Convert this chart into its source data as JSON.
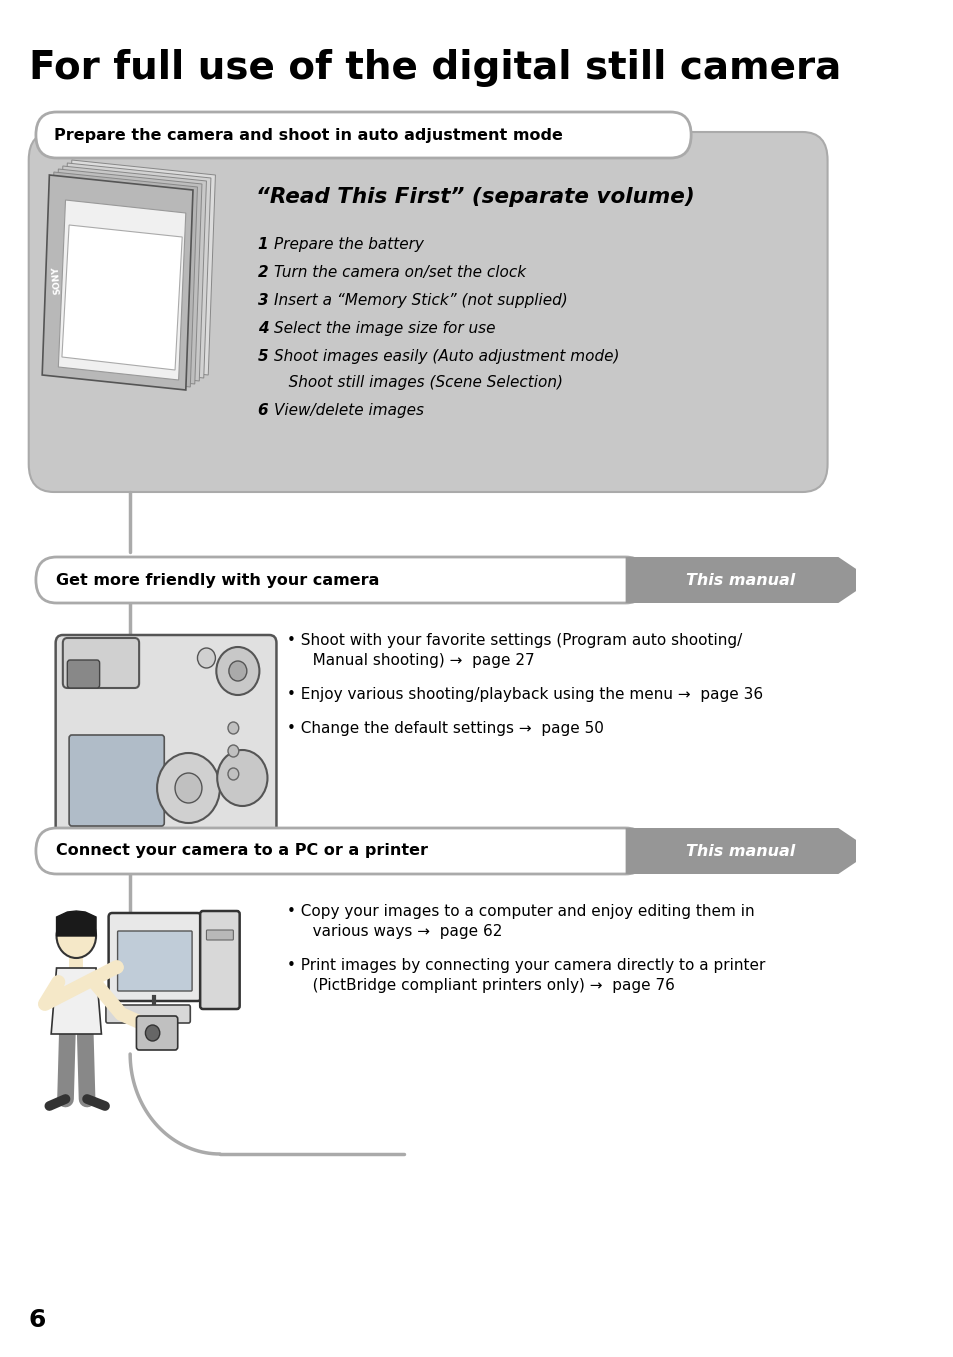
{
  "title": "For full use of the digital still camera",
  "background_color": "#ffffff",
  "section1_header": "Prepare the camera and shoot in auto adjustment mode",
  "rtf_title": "“Read This First” (separate volume)",
  "rtf_items": [
    [
      "1",
      "Prepare the battery"
    ],
    [
      "2",
      "Turn the camera on/set the clock"
    ],
    [
      "3",
      "Insert a “Memory Stick” (not supplied)"
    ],
    [
      "4",
      "Select the image size for use"
    ],
    [
      "5",
      "Shoot images easily (Auto adjustment mode)",
      "   Shoot still images (Scene Selection)"
    ],
    [
      "6",
      "View/delete images"
    ]
  ],
  "section2_header": "Get more friendly with your camera",
  "section2_tag": "This manual",
  "section2_bullets": [
    [
      "Shoot with your favorite settings (Program auto shooting/",
      "   Manual shooting) →  page 27"
    ],
    [
      "Enjoy various shooting/playback using the menu →  page 36"
    ],
    [
      "Change the default settings →  page 50"
    ]
  ],
  "section3_header": "Connect your camera to a PC or a printer",
  "section3_tag": "This manual",
  "section3_bullets": [
    [
      "Copy your images to a computer and enjoy editing them in",
      "   various ways →  page 62"
    ],
    [
      "Print images by connecting your camera directly to a printer",
      "   (PictBridge compliant printers only) →  page 76"
    ]
  ],
  "page_number": "6",
  "gray_light": "#c8c8c8",
  "gray_medium": "#aaaaaa",
  "gray_dark": "#787878",
  "white": "#ffffff",
  "black": "#000000",
  "arrow_color": "#969696"
}
